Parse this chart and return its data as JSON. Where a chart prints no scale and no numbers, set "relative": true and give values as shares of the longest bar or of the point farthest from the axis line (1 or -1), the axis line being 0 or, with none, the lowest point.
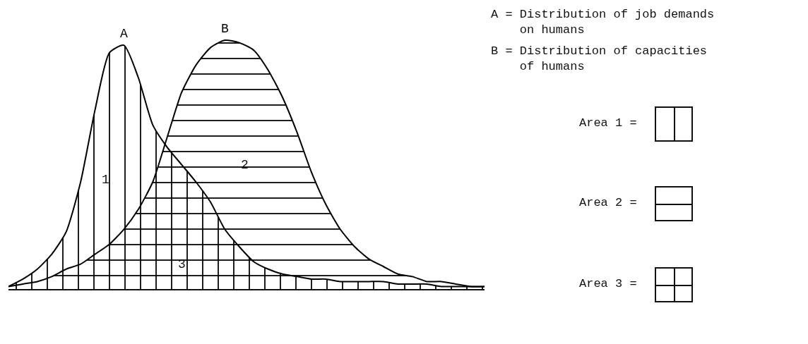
{
  "chart_data": {
    "type": "area",
    "relative": true,
    "categories": [
      null,
      null,
      null,
      null,
      null,
      null,
      null,
      null,
      null,
      null,
      null,
      null,
      null,
      null,
      null,
      null,
      null,
      null,
      null,
      null,
      null,
      null,
      null,
      null,
      null,
      null,
      null,
      null,
      null,
      null,
      null,
      null,
      null,
      null
    ],
    "series": [
      {
        "name": "A",
        "color": "#000000",
        "values": [
          0.01,
          0.04,
          0.08,
          0.14,
          0.23,
          0.43,
          0.72,
          0.95,
          0.98,
          0.85,
          0.66,
          0.57,
          0.5,
          0.43,
          0.35,
          0.24,
          0.17,
          0.11,
          0.08,
          0.06,
          0.05,
          0.04,
          0.04,
          0.03,
          0.03,
          0.03,
          0.03,
          0.02,
          0.02,
          0.02,
          0.01,
          0.01,
          0.01,
          0.01
        ]
      },
      {
        "name": "B",
        "color": "#000000",
        "values": [
          0.01,
          0.02,
          0.03,
          0.05,
          0.08,
          0.1,
          0.14,
          0.18,
          0.24,
          0.32,
          0.43,
          0.61,
          0.79,
          0.9,
          0.97,
          1,
          0.99,
          0.96,
          0.88,
          0.77,
          0.63,
          0.47,
          0.34,
          0.24,
          0.17,
          0.12,
          0.09,
          0.06,
          0.05,
          0.03,
          0.03,
          0.02,
          0.01,
          0.01
        ]
      }
    ],
    "legend": false,
    "annotations": [
      "1",
      "2",
      "3",
      "A = Distribution of job demands on humans",
      "B = Distribution of capacities of humans",
      "Area 1 =",
      "Area 2 =",
      "Area 3 ="
    ]
  }
}
